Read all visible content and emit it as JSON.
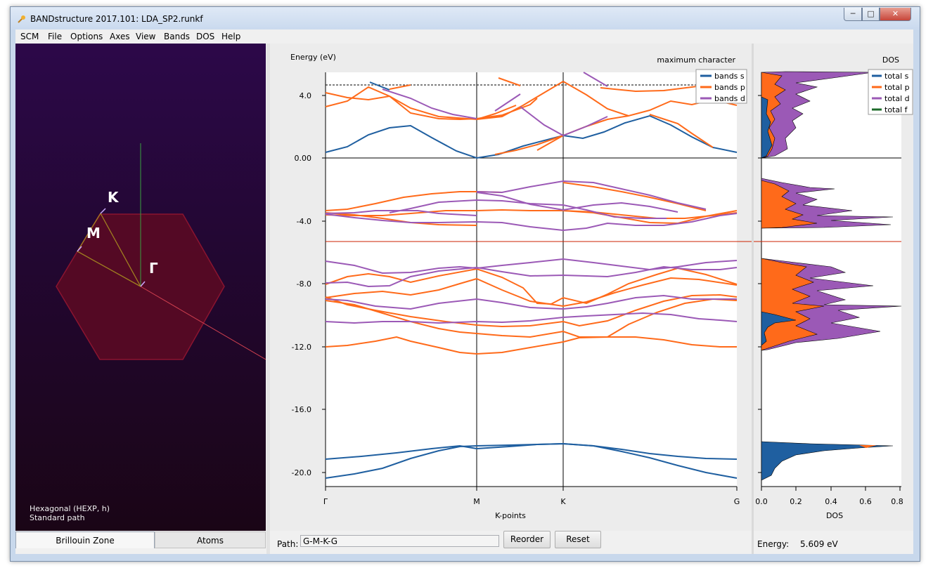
{
  "window": {
    "title": "BANDstructure 2017.101: LDA_SP2.runkf",
    "controls": {
      "minimize": "─",
      "maximize": "□",
      "close": "✕"
    }
  },
  "menu": [
    "SCM",
    "File",
    "Options",
    "Axes",
    "View",
    "Bands",
    "DOS",
    "Help"
  ],
  "brillouin_zone": {
    "labels": {
      "k": "K",
      "m": "M",
      "gamma": "Γ"
    },
    "info_line1": "Hexagonal (HEXP, h)",
    "info_line2": "Standard path"
  },
  "tabs": [
    "Brillouin Zone",
    "Atoms"
  ],
  "bands_plot": {
    "ylabel": "Energy (eV)",
    "xlabel": "K-points",
    "header_right": "maximum character",
    "y_ticks": [
      "4.0",
      "0.00",
      "-4.0",
      "-8.0",
      "-12.0",
      "-16.0",
      "-20.0"
    ],
    "x_ticks": [
      "Γ",
      "M",
      "K",
      "G"
    ],
    "legend": [
      "bands s",
      "bands p",
      "bands d"
    ]
  },
  "dos_plot": {
    "title": "DOS",
    "xlabel": "DOS",
    "x_ticks": [
      "0.0",
      "0.2",
      "0.4",
      "0.6",
      "0.8"
    ],
    "legend": [
      "total s",
      "total p",
      "total d",
      "total f"
    ]
  },
  "colors": {
    "s": "#1f5fa0",
    "p": "#ff6a1a",
    "d": "#9b59b6",
    "f": "#1e6b2a",
    "fermi": "#cc2200"
  },
  "bottom": {
    "path_label": "Path:",
    "path_value": "G-M-K-G",
    "reorder": "Reorder",
    "reset": "Reset",
    "energy_label": "Energy:",
    "energy_value": "5.609 eV"
  }
}
